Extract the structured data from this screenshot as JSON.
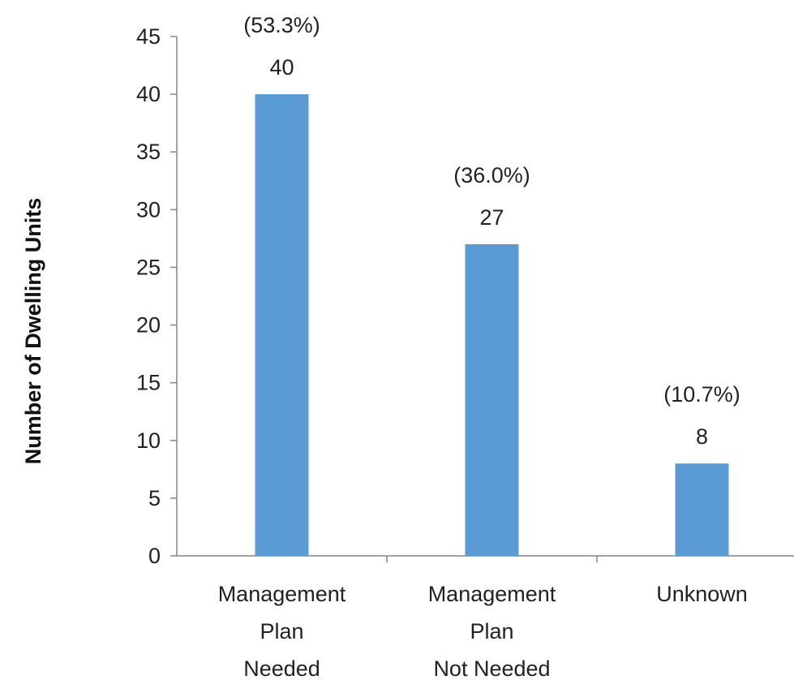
{
  "chart_data": {
    "type": "bar",
    "categories": [
      [
        "Management",
        "Plan",
        "Needed"
      ],
      [
        "Management",
        "Plan",
        "Not Needed"
      ],
      [
        "Unknown"
      ]
    ],
    "values": [
      40,
      27,
      8
    ],
    "percent_labels": [
      "(53.3%)",
      "(36.0%)",
      "(10.7%)"
    ],
    "value_labels": [
      "40",
      "27",
      "8"
    ],
    "title": "",
    "xlabel": "",
    "ylabel": "Number of Dwelling Units",
    "ylim": [
      0,
      45
    ],
    "yticks": [
      0,
      5,
      10,
      15,
      20,
      25,
      30,
      35,
      40,
      45
    ],
    "grid": false,
    "bar_color": "#5B9BD5"
  }
}
